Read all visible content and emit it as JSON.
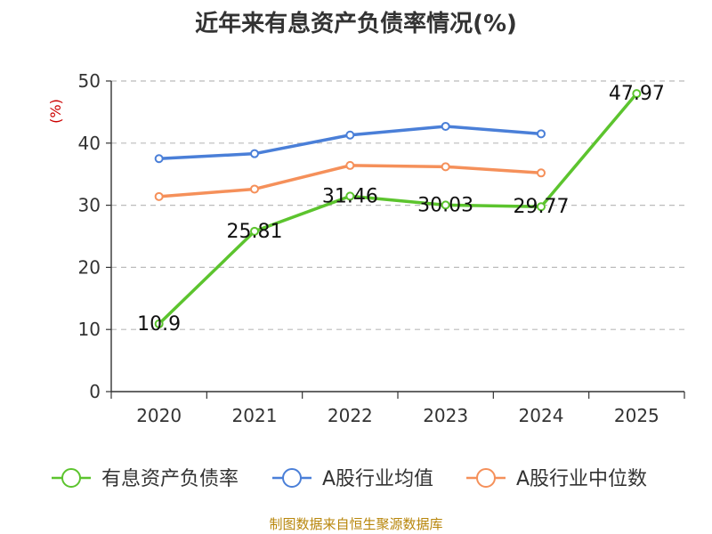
{
  "page": {
    "source_note": "制图数据来自恒生聚源数据库"
  },
  "chart_data": {
    "type": "line",
    "title": "近年来有息资产负债率情况(%)",
    "ylabel": "(%)",
    "xlabel": "",
    "categories": [
      "2020",
      "2021",
      "2022",
      "2023",
      "2024",
      "2025"
    ],
    "ylim": [
      0,
      50
    ],
    "yticks": [
      0,
      10,
      20,
      30,
      40,
      50
    ],
    "grid": true,
    "legend_position": "bottom",
    "series": [
      {
        "name": "有息资产负债率",
        "color": "#5cc42e",
        "values": [
          10.9,
          25.81,
          31.46,
          30.03,
          29.77,
          47.97
        ],
        "labels": [
          "10.9",
          "25.81",
          "31.46",
          "30.03",
          "29.77",
          "47.97"
        ],
        "show_labels": true
      },
      {
        "name": "A股行业均值",
        "color": "#4a7fd8",
        "values": [
          37.5,
          38.3,
          41.3,
          42.7,
          41.5,
          null
        ],
        "show_labels": false
      },
      {
        "name": "A股行业中位数",
        "color": "#f5905a",
        "values": [
          31.4,
          32.6,
          36.4,
          36.2,
          35.2,
          null
        ],
        "show_labels": false
      }
    ],
    "colors": {
      "axis": "#333333",
      "grid": "#bbbbbb",
      "ylabel": "#cc0000"
    }
  }
}
